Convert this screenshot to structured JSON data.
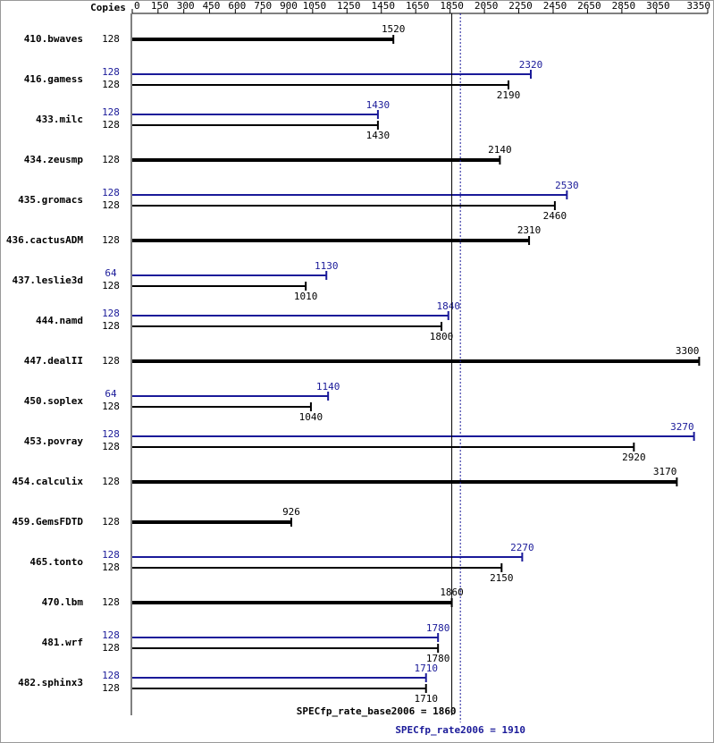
{
  "chart_data": {
    "type": "bar",
    "copies_header": "Copies",
    "categories": [
      "410.bwaves",
      "416.gamess",
      "433.milc",
      "434.zeusmp",
      "435.gromacs",
      "436.cactusADM",
      "437.leslie3d",
      "444.namd",
      "447.dealII",
      "450.soplex",
      "453.povray",
      "454.calculix",
      "459.GemsFDTD",
      "465.tonto",
      "470.lbm",
      "481.wrf",
      "482.sphinx3"
    ],
    "series": [
      {
        "color": "#000000",
        "copies": [
          128,
          128,
          128,
          128,
          128,
          128,
          128,
          128,
          128,
          128,
          128,
          128,
          128,
          128,
          128,
          128,
          128
        ],
        "values": [
          1520,
          2190,
          1430,
          2140,
          2460,
          2310,
          1010,
          1800,
          3300,
          1040,
          2920,
          3170,
          926,
          2150,
          1860,
          1780,
          1710
        ]
      },
      {
        "color": "#1a1a99",
        "copies": [
          null,
          128,
          128,
          null,
          128,
          null,
          64,
          128,
          null,
          64,
          128,
          null,
          null,
          128,
          null,
          128,
          128
        ],
        "values": [
          null,
          2320,
          1430,
          null,
          2530,
          null,
          1130,
          1840,
          null,
          1140,
          3270,
          null,
          null,
          2270,
          null,
          1780,
          1710
        ]
      }
    ],
    "xlim": [
      0,
      3350
    ],
    "xticks": [
      0,
      150,
      300,
      450,
      600,
      750,
      900,
      1050,
      1250,
      1450,
      1650,
      1850,
      2050,
      2250,
      2450,
      2650,
      2850,
      3050,
      3350
    ],
    "reference_lines": [
      {
        "label": "SPECfp_rate_base2006 = 1860",
        "value": 1860,
        "color": "#000000",
        "dashed": false
      },
      {
        "label": "SPECfp_rate2006 = 1910",
        "value": 1910,
        "color": "#1a1a99",
        "dashed": true
      }
    ]
  }
}
